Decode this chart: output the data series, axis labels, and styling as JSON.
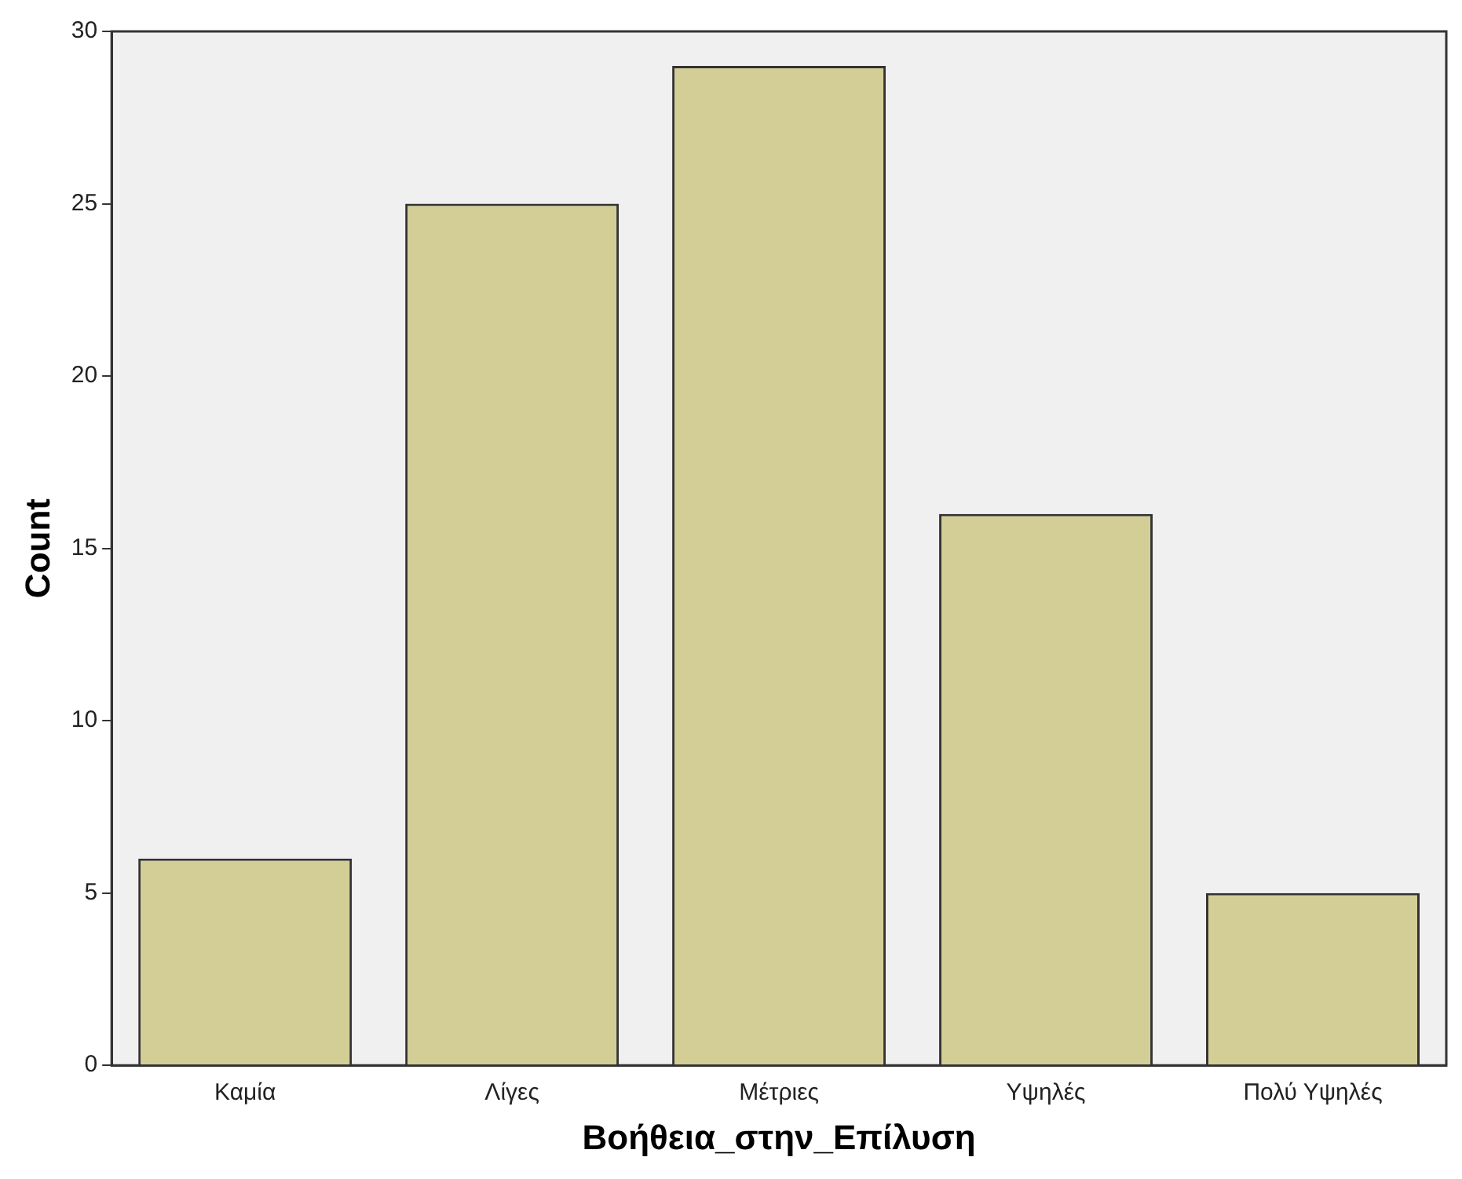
{
  "chart_data": {
    "type": "bar",
    "xlabel": "Βοήθεια_στην_Επίλυση",
    "ylabel": "Count",
    "categories": [
      "Καμία",
      "Λίγες",
      "Μέτριες",
      "Υψηλές",
      "Πολύ Υψηλές"
    ],
    "values": [
      6,
      25,
      29,
      16,
      5
    ],
    "color": "#d3ce96",
    "ylim": [
      0,
      30
    ],
    "yticks": [
      0,
      5,
      10,
      15,
      20,
      25,
      30
    ],
    "grid": false,
    "legend": false
  }
}
